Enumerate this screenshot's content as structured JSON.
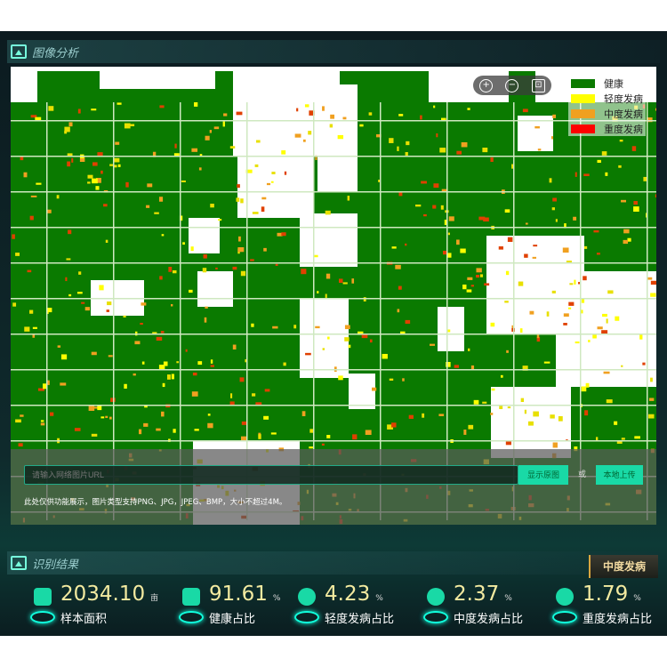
{
  "analysis": {
    "title": "图像分析",
    "legend": [
      {
        "label": "健康",
        "color": "#0a7a00"
      },
      {
        "label": "轻度发病",
        "color": "#ffff00"
      },
      {
        "label": "中度发病",
        "color": "#f0a020"
      },
      {
        "label": "重度发病",
        "color": "#ff0000"
      }
    ],
    "zoom_in": "+",
    "zoom_out": "−",
    "fit": "⊡",
    "url_placeholder": "请输入网络图片URL",
    "show_original": "显示原图",
    "or": "或",
    "upload": "本地上传",
    "note": "此处仅供功能展示，图片类型支持PNG、JPG，JPEG、BMP，大小不超过4M。"
  },
  "results": {
    "title": "识别结果",
    "level_badge": "中度发病",
    "stats": [
      {
        "value": "2034.10",
        "unit": "亩",
        "label": "样本面积",
        "icon": "area-icon"
      },
      {
        "value": "91.61",
        "unit": "%",
        "label": "健康占比",
        "icon": "crop-icon"
      },
      {
        "value": "4.23",
        "unit": "%",
        "label": "轻度发病占比",
        "icon": "pie-icon"
      },
      {
        "value": "2.37",
        "unit": "%",
        "label": "中度发病占比",
        "icon": "pie-icon"
      },
      {
        "value": "1.79",
        "unit": "%",
        "label": "重度发病占比",
        "icon": "pie-icon"
      }
    ]
  }
}
